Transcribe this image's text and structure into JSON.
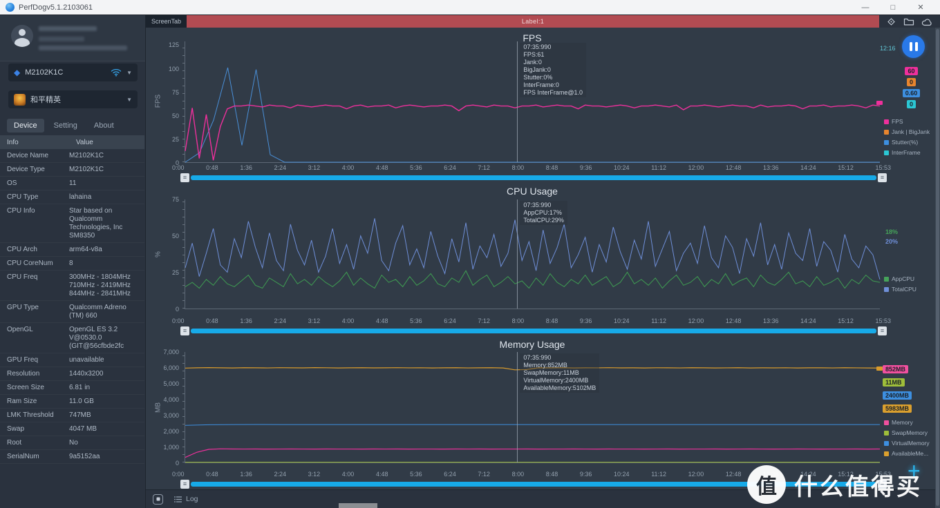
{
  "window": {
    "title": "PerfDogv5.1.2103061"
  },
  "icons": {
    "minimize": "—",
    "maximize": "□",
    "close": "✕",
    "device_diamond": "◆",
    "caret": "▼",
    "plus": "+",
    "scroll_grip": "≡"
  },
  "colors": {
    "banner_red": "#b24b52",
    "scrollbar_blue": "#17aae8",
    "pause_blue": "#2979e8",
    "accent_cyan": "#2ab4ec"
  },
  "sidebar": {
    "device_selector": {
      "label": "M2102K1C"
    },
    "app_selector": {
      "label": "和平精英"
    },
    "tabs": [
      {
        "label": "Device"
      },
      {
        "label": "Setting"
      },
      {
        "label": "About"
      }
    ],
    "table": {
      "headers": [
        "Info",
        "Value"
      ],
      "rows": [
        {
          "label": "Device Name",
          "value": "M2102K1C"
        },
        {
          "label": "Device Type",
          "value": "M2102K1C"
        },
        {
          "label": "OS",
          "value": "11"
        },
        {
          "label": "CPU Type",
          "value": "lahaina"
        },
        {
          "label": "CPU Info",
          "value": "Star based on\nQualcomm\nTechnologies, Inc\nSM8350"
        },
        {
          "label": "CPU Arch",
          "value": "arm64-v8a"
        },
        {
          "label": "CPU CoreNum",
          "value": "8"
        },
        {
          "label": "CPU Freq",
          "value": "300MHz - 1804MHz\n710MHz - 2419MHz\n844MHz - 2841MHz"
        },
        {
          "label": "GPU Type",
          "value": "Qualcomm Adreno\n(TM) 660"
        },
        {
          "label": "OpenGL",
          "value": "OpenGL ES 3.2\nV@0530.0\n(GIT@56cfbde2fc"
        },
        {
          "label": "GPU Freq",
          "value": "unavailable"
        },
        {
          "label": "Resolution",
          "value": "1440x3200"
        },
        {
          "label": "Screen Size",
          "value": "6.81 in"
        },
        {
          "label": "Ram Size",
          "value": "11.0 GB"
        },
        {
          "label": "LMK Threshold",
          "value": "747MB"
        },
        {
          "label": "Swap",
          "value": "4047 MB"
        },
        {
          "label": "Root",
          "value": "No"
        },
        {
          "label": "SerialNum",
          "value": "9a5152aa"
        }
      ]
    }
  },
  "topbar": {
    "tab": "ScreenTab",
    "banner": "Label:1"
  },
  "bottombar": {
    "log_label": "Log"
  },
  "watermark": {
    "logo_char": "值",
    "text": "什么值得买"
  },
  "chart_data": [
    {
      "type": "line",
      "title": "FPS",
      "ylabel": "FPS",
      "ymax": 129,
      "ylim": [
        0,
        129
      ],
      "yticks": [
        [
          0,
          "0"
        ],
        [
          25,
          "25"
        ],
        [
          50,
          "50"
        ],
        [
          75,
          "75"
        ],
        [
          100,
          "100"
        ],
        [
          125,
          "125"
        ]
      ],
      "xticks": [
        "0:00",
        "0:48",
        "1:36",
        "2:24",
        "3:12",
        "4:00",
        "4:48",
        "5:36",
        "6:24",
        "7:12",
        "8:00",
        "8:48",
        "9:36",
        "10:24",
        "11:12",
        "12:00",
        "12:48",
        "13:36",
        "14:24",
        "15:12",
        "15:53"
      ],
      "cursor_frac": 0.478,
      "tooltip": [
        "07:35:990",
        "FPS:61",
        "Jank:0",
        "BigJank:0",
        "Stutter:0%",
        "InterFrame:0",
        "FPS InterFrame@1.0"
      ],
      "clock": "12:16",
      "chip": true,
      "values": [
        {
          "text": "60",
          "color": "#ef309c"
        },
        {
          "text": "0",
          "color": "#e8852e"
        },
        {
          "text": "0.60",
          "color": "#3d8fe0"
        },
        {
          "text": "0",
          "color": "#2bc7d4"
        }
      ],
      "legend": [
        {
          "label": "FPS",
          "color": "#ef309c"
        },
        {
          "label": "Jank | BigJank",
          "color": "#e8852e"
        },
        {
          "label": "Stutter(%)",
          "color": "#3d8fe0"
        },
        {
          "label": "InterFrame",
          "color": "#2bc7d4"
        }
      ],
      "series": [
        {
          "name": "InterFrame",
          "color": "#4a90d9",
          "width": 1,
          "values": [
            0,
            10,
            45,
            101,
            18,
            99,
            8,
            0,
            0,
            0,
            0,
            0,
            0,
            0,
            0,
            0,
            0,
            0,
            0,
            0,
            0,
            0,
            0,
            0,
            0,
            0,
            0,
            0,
            0,
            0,
            0,
            0,
            0,
            0,
            0,
            0,
            0,
            0,
            0,
            0,
            0,
            0,
            0,
            0,
            0,
            0,
            0,
            0,
            0,
            0
          ]
        },
        {
          "name": "FPS",
          "color": "#ef309c",
          "width": 1.4,
          "values": [
            12,
            58,
            4,
            51,
            2,
            38,
            57,
            60,
            60,
            61,
            60,
            59,
            61,
            60,
            60,
            58,
            61,
            60,
            59,
            60,
            61,
            60,
            60,
            57,
            60,
            61,
            59,
            60,
            60,
            61,
            58,
            60,
            61,
            60,
            59,
            60,
            60,
            61,
            60,
            55,
            60,
            61,
            60,
            59,
            61,
            60,
            60,
            58,
            60,
            60,
            61,
            59,
            60,
            61,
            60,
            60,
            57,
            61,
            60,
            60,
            59,
            60,
            61,
            60,
            58,
            60,
            60,
            61,
            60,
            59,
            61,
            56,
            60,
            60,
            61,
            60,
            59,
            60,
            61,
            60,
            60,
            58,
            61,
            59,
            60,
            60,
            61,
            60,
            57,
            60,
            60,
            61,
            59,
            60,
            60,
            61,
            60,
            58,
            61,
            60
          ]
        }
      ]
    },
    {
      "type": "line",
      "title": "CPU Usage",
      "ylabel": "%",
      "ymax": 75,
      "ylim": [
        0,
        75
      ],
      "yticks": [
        [
          0,
          "0"
        ],
        [
          25,
          "25"
        ],
        [
          50,
          "50"
        ],
        [
          75,
          "75"
        ]
      ],
      "xticks": [
        "0:00",
        "0:48",
        "1:36",
        "2:24",
        "3:12",
        "4:00",
        "4:48",
        "5:36",
        "6:24",
        "7:12",
        "8:00",
        "8:48",
        "9:36",
        "10:24",
        "11:12",
        "12:00",
        "12:48",
        "13:36",
        "14:24",
        "15:12",
        "15:53"
      ],
      "cursor_frac": 0.478,
      "tooltip": [
        "07:35:990",
        "AppCPU:17%",
        "TotalCPU:29%"
      ],
      "chip": false,
      "values": [
        {
          "text": "18%",
          "color": "#46a35a"
        },
        {
          "text": "20%",
          "color": "#6f8fd8"
        }
      ],
      "legend": [
        {
          "label": "AppCPU",
          "color": "#46a35a"
        },
        {
          "label": "TotalCPU",
          "color": "#6f8fd8"
        }
      ],
      "series": [
        {
          "name": "TotalCPU",
          "color": "#6f8fd8",
          "width": 1,
          "values": [
            28,
            45,
            22,
            38,
            55,
            30,
            25,
            48,
            35,
            60,
            42,
            28,
            52,
            33,
            26,
            58,
            40,
            30,
            47,
            25,
            36,
            55,
            31,
            44,
            27,
            50,
            38,
            62,
            33,
            26,
            45,
            57,
            30,
            41,
            28,
            53,
            36,
            24,
            48,
            32,
            59,
            27,
            43,
            35,
            51,
            29,
            38,
            61,
            33,
            46,
            26,
            54,
            31,
            42,
            58,
            28,
            37,
            49,
            25,
            44,
            32,
            56,
            39,
            27,
            47,
            34,
            60,
            29,
            41,
            53,
            26,
            38,
            45,
            31,
            57,
            35,
            28,
            50,
            42,
            24,
            48,
            36,
            59,
            30,
            44,
            27,
            52,
            38,
            33,
            55,
            29,
            46,
            40,
            25,
            51,
            34,
            28,
            43,
            37,
            20
          ]
        },
        {
          "name": "AppCPU",
          "color": "#3f9d52",
          "width": 1,
          "values": [
            15,
            18,
            14,
            20,
            16,
            22,
            17,
            15,
            19,
            23,
            16,
            14,
            21,
            18,
            15,
            24,
            17,
            20,
            16,
            22,
            18,
            15,
            19,
            25,
            16,
            21,
            17,
            14,
            23,
            18,
            20,
            15,
            22,
            16,
            19,
            24,
            17,
            15,
            21,
            18,
            26,
            16,
            20,
            23,
            15,
            18,
            22,
            17,
            19,
            14,
            21,
            16,
            24,
            18,
            15,
            20,
            17,
            23,
            16,
            19,
            22,
            15,
            18,
            25,
            17,
            20,
            16,
            21,
            14,
            19,
            23,
            16,
            18,
            22,
            15,
            20,
            17,
            24,
            16,
            19,
            21,
            15,
            23,
            18,
            16,
            20,
            25,
            17,
            19,
            15,
            22,
            16,
            18,
            21,
            14,
            20,
            17,
            23,
            19,
            18
          ]
        }
      ]
    },
    {
      "type": "line",
      "title": "Memory Usage",
      "ylabel": "MB",
      "ymax": 7000,
      "ylim": [
        0,
        7000
      ],
      "yticks": [
        [
          0,
          "0"
        ],
        [
          1000,
          "1,000"
        ],
        [
          2000,
          "2,000"
        ],
        [
          3000,
          "3,000"
        ],
        [
          4000,
          "4,000"
        ],
        [
          5000,
          "5,000"
        ],
        [
          6000,
          "6,000"
        ],
        [
          7000,
          "7,000"
        ]
      ],
      "xticks": [
        "0:00",
        "0:48",
        "1:36",
        "2:24",
        "3:12",
        "4:00",
        "4:48",
        "5:36",
        "6:24",
        "7:12",
        "8:00",
        "8:48",
        "9:36",
        "10:24",
        "11:12",
        "12:00",
        "12:48",
        "13:36",
        "14:24",
        "15:12",
        "15:53"
      ],
      "cursor_frac": 0.478,
      "tooltip": [
        "07:35:990",
        "Memory:852MB",
        "SwapMemory:11MB",
        "VirtualMemory:2400MB",
        "AvailableMemory:5102MB"
      ],
      "chip": true,
      "values": [
        {
          "text": "852MB",
          "color": "#f0509e"
        },
        {
          "text": "11MB",
          "color": "#9fbe3a"
        },
        {
          "text": "2400MB",
          "color": "#3d8fe0"
        },
        {
          "text": "5983MB",
          "color": "#dba02e"
        }
      ],
      "legend": [
        {
          "label": "Memory",
          "color": "#f0509e"
        },
        {
          "label": "SwapMemory",
          "color": "#9fbe3a"
        },
        {
          "label": "VirtualMemory",
          "color": "#3d8fe0"
        },
        {
          "label": "AvailableMe...",
          "color": "#dba02e"
        }
      ],
      "series": [
        {
          "name": "SwapMemory",
          "color": "#9fbe3a",
          "width": 1,
          "values": [
            10,
            11,
            11,
            11,
            11,
            11,
            11,
            11,
            11,
            11,
            11,
            11,
            11,
            11,
            11,
            11,
            11,
            11,
            11,
            11,
            11,
            11,
            11,
            11,
            11,
            11,
            11,
            11,
            11,
            11
          ]
        },
        {
          "name": "VirtualMemory",
          "color": "#3d8fe0",
          "width": 1,
          "values": [
            2350,
            2390,
            2400,
            2405,
            2400,
            2398,
            2402,
            2400,
            2401,
            2399,
            2400,
            2402,
            2398,
            2400,
            2401,
            2400,
            2399,
            2402,
            2400,
            2398,
            2400,
            2401,
            2399,
            2400,
            2402,
            2400,
            2398,
            2401,
            2400,
            2400
          ]
        },
        {
          "name": "Memory",
          "color": "#ef309c",
          "width": 1.2,
          "values": [
            320,
            650,
            830,
            860,
            855,
            850,
            852,
            848,
            851,
            853,
            850,
            849,
            852,
            850,
            851,
            848,
            853,
            850,
            852,
            849,
            851,
            850,
            848,
            852,
            850,
            853,
            849,
            851,
            850,
            852,
            848,
            850,
            851,
            853,
            850,
            849,
            852,
            850,
            851,
            848,
            850,
            852,
            849,
            851,
            850,
            853,
            848,
            850,
            852,
            851,
            849,
            850,
            852,
            850,
            848,
            851,
            850,
            853,
            849,
            852
          ]
        },
        {
          "name": "AvailableMemory",
          "color": "#d99b2c",
          "width": 1.2,
          "values": [
            5980,
            6000,
            6010,
            6000,
            5990,
            6005,
            5998,
            5992,
            6008,
            6000,
            5995,
            6010,
            6002,
            5990,
            6000,
            6005,
            5994,
            6000,
            6008,
            5996,
            6002,
            5990,
            6000,
            6006,
            5992,
            5998,
            6004,
            5988,
            5870,
            5890,
            6000,
            5995,
            6005,
            5990,
            6000,
            5996,
            6008,
            5994,
            6000,
            5990,
            6002,
            5998,
            5992,
            6006,
            6000,
            5988,
            5996,
            6004,
            5990,
            6000,
            5994,
            6002,
            5988,
            5998,
            6000,
            5992,
            6004,
            5996,
            5990,
            5983
          ]
        }
      ]
    }
  ]
}
